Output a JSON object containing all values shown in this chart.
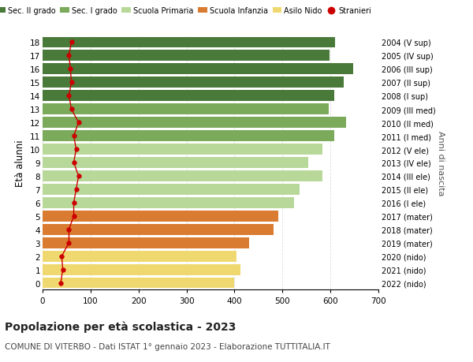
{
  "ages": [
    18,
    17,
    16,
    15,
    14,
    13,
    12,
    11,
    10,
    9,
    8,
    7,
    6,
    5,
    4,
    3,
    2,
    1,
    0
  ],
  "right_labels": [
    "2004 (V sup)",
    "2005 (IV sup)",
    "2006 (III sup)",
    "2007 (II sup)",
    "2008 (I sup)",
    "2009 (III med)",
    "2010 (II med)",
    "2011 (I med)",
    "2012 (V ele)",
    "2013 (IV ele)",
    "2014 (III ele)",
    "2015 (II ele)",
    "2016 (I ele)",
    "2017 (mater)",
    "2018 (mater)",
    "2019 (mater)",
    "2020 (nido)",
    "2021 (nido)",
    "2022 (nido)"
  ],
  "bar_values": [
    610,
    598,
    648,
    628,
    608,
    596,
    632,
    608,
    584,
    554,
    584,
    536,
    524,
    492,
    482,
    430,
    404,
    412,
    400
  ],
  "stranieri_values": [
    60,
    55,
    58,
    60,
    55,
    60,
    75,
    65,
    70,
    65,
    75,
    70,
    65,
    65,
    55,
    55,
    40,
    42,
    38
  ],
  "bar_colors": [
    "#4a7a3a",
    "#4a7a3a",
    "#4a7a3a",
    "#4a7a3a",
    "#4a7a3a",
    "#7aaa5a",
    "#7aaa5a",
    "#7aaa5a",
    "#b8d89a",
    "#b8d89a",
    "#b8d89a",
    "#b8d89a",
    "#b8d89a",
    "#d97b30",
    "#d97b30",
    "#d97b30",
    "#f0d870",
    "#f0d870",
    "#f0d870"
  ],
  "legend_colors": [
    "#4a7a3a",
    "#7aaa5a",
    "#b8d89a",
    "#d97b30",
    "#f0d870",
    "#cc0000"
  ],
  "legend_labels": [
    "Sec. II grado",
    "Sec. I grado",
    "Scuola Primaria",
    "Scuola Infanzia",
    "Asilo Nido",
    "Stranieri"
  ],
  "ylabel": "Età alunni",
  "right_ylabel": "Anni di nascita",
  "title": "Popolazione per età scolastica - 2023",
  "subtitle": "COMUNE DI VITERBO - Dati ISTAT 1° gennaio 2023 - Elaborazione TUTTITALIA.IT",
  "xlim": [
    0,
    700
  ],
  "xticks": [
    0,
    100,
    200,
    300,
    400,
    500,
    600,
    700
  ],
  "bg_color": "#ffffff",
  "grid_color": "#dddddd",
  "stranieri_color": "#cc0000"
}
